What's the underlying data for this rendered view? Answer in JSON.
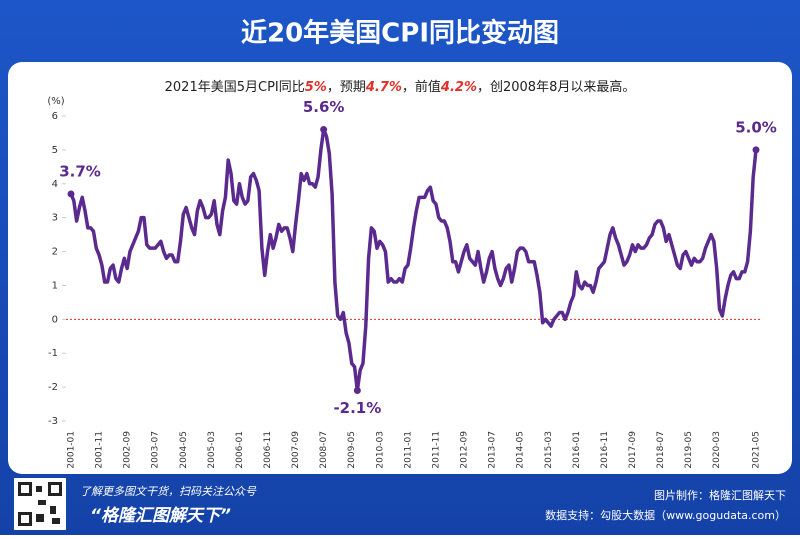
{
  "chart_data": {
    "type": "line",
    "title": "近20年美国CPI同比变动图",
    "subtitle_parts": [
      "2021年美国5月CPI同比",
      "5%",
      "，预期",
      "4.7%",
      "，前值",
      "4.2%",
      "，创2008年8月以来最高。"
    ],
    "y_unit": "(%)",
    "categories": [
      "2001-01",
      null,
      null,
      null,
      null,
      null,
      null,
      null,
      null,
      null,
      "2001-11",
      null,
      null,
      null,
      null,
      null,
      null,
      null,
      null,
      null,
      "2002-09",
      null,
      null,
      null,
      null,
      null,
      null,
      null,
      null,
      null,
      "2003-07",
      null,
      null,
      null,
      null,
      null,
      null,
      null,
      null,
      null,
      "2004-05",
      null,
      null,
      null,
      null,
      null,
      null,
      null,
      null,
      null,
      "2005-03",
      null,
      null,
      null,
      null,
      null,
      null,
      null,
      null,
      null,
      "2006-01",
      null,
      null,
      null,
      null,
      null,
      null,
      null,
      null,
      null,
      "2006-11",
      null,
      null,
      null,
      null,
      null,
      null,
      null,
      null,
      null,
      "2007-09",
      null,
      null,
      null,
      null,
      null,
      null,
      null,
      null,
      null,
      "2008-07",
      null,
      null,
      null,
      null,
      null,
      null,
      null,
      null,
      null,
      "2009-05",
      null,
      null,
      null,
      null,
      null,
      null,
      null,
      null,
      null,
      "2010-03",
      null,
      null,
      null,
      null,
      null,
      null,
      null,
      null,
      null,
      "2011-01",
      null,
      null,
      null,
      null,
      null,
      null,
      null,
      null,
      null,
      "2011-11",
      null,
      null,
      null,
      null,
      null,
      null,
      null,
      null,
      null,
      "2012-09",
      null,
      null,
      null,
      null,
      null,
      null,
      null,
      null,
      null,
      "2013-07",
      null,
      null,
      null,
      null,
      null,
      null,
      null,
      null,
      null,
      "2014-05",
      null,
      null,
      null,
      null,
      null,
      null,
      null,
      null,
      null,
      "2015-03",
      null,
      null,
      null,
      null,
      null,
      null,
      null,
      null,
      null,
      "2016-01",
      null,
      null,
      null,
      null,
      null,
      null,
      null,
      null,
      null,
      "2016-11",
      null,
      null,
      null,
      null,
      null,
      null,
      null,
      null,
      null,
      "2017-09",
      null,
      null,
      null,
      null,
      null,
      null,
      null,
      null,
      null,
      "2018-07",
      null,
      null,
      null,
      null,
      null,
      null,
      null,
      null,
      null,
      "2019-05",
      null,
      null,
      null,
      null,
      null,
      null,
      null,
      null,
      null,
      "2020-03",
      null,
      null,
      null,
      null,
      null,
      null,
      null,
      null,
      null,
      null,
      null,
      null,
      null,
      "2021-05"
    ],
    "values": [
      3.7,
      3.5,
      2.9,
      3.3,
      3.6,
      3.2,
      2.7,
      2.7,
      2.6,
      2.1,
      1.9,
      1.6,
      1.1,
      1.1,
      1.5,
      1.6,
      1.2,
      1.1,
      1.5,
      1.8,
      1.5,
      2.0,
      2.2,
      2.4,
      2.6,
      3.0,
      3.0,
      2.2,
      2.1,
      2.1,
      2.1,
      2.2,
      2.3,
      2.0,
      1.8,
      1.9,
      1.9,
      1.7,
      1.7,
      2.3,
      3.1,
      3.3,
      3.0,
      2.7,
      2.5,
      3.2,
      3.5,
      3.3,
      3.0,
      3.0,
      3.1,
      3.5,
      2.8,
      2.5,
      3.2,
      3.6,
      4.7,
      4.3,
      3.5,
      3.4,
      4.0,
      3.6,
      3.4,
      3.5,
      4.2,
      4.3,
      4.1,
      3.8,
      2.1,
      1.3,
      2.0,
      2.5,
      2.1,
      2.4,
      2.8,
      2.6,
      2.7,
      2.7,
      2.4,
      2.0,
      2.8,
      3.5,
      4.3,
      4.1,
      4.3,
      4.0,
      4.0,
      3.9,
      4.2,
      5.0,
      5.6,
      5.4,
      4.9,
      3.7,
      1.1,
      0.1,
      0.0,
      0.2,
      -0.4,
      -0.7,
      -1.3,
      -1.4,
      -2.1,
      -1.5,
      -1.3,
      -0.2,
      1.8,
      2.7,
      2.6,
      2.1,
      2.3,
      2.2,
      2.0,
      1.1,
      1.2,
      1.1,
      1.1,
      1.2,
      1.1,
      1.5,
      1.6,
      2.1,
      2.7,
      3.2,
      3.6,
      3.6,
      3.6,
      3.8,
      3.9,
      3.5,
      3.4,
      3.0,
      2.9,
      2.9,
      2.7,
      2.3,
      1.7,
      1.7,
      1.4,
      1.7,
      2.0,
      2.2,
      1.8,
      1.7,
      1.6,
      2.0,
      1.5,
      1.1,
      1.4,
      1.8,
      2.0,
      1.5,
      1.2,
      1.0,
      1.2,
      1.5,
      1.6,
      1.1,
      1.5,
      2.0,
      2.1,
      2.1,
      2.0,
      1.7,
      1.7,
      1.7,
      1.3,
      0.8,
      -0.1,
      0.0,
      -0.1,
      -0.2,
      0.0,
      0.1,
      0.2,
      0.2,
      0.0,
      0.2,
      0.5,
      0.7,
      1.4,
      1.0,
      0.9,
      1.1,
      1.0,
      1.0,
      0.8,
      1.1,
      1.5,
      1.6,
      1.7,
      2.1,
      2.5,
      2.7,
      2.4,
      2.2,
      1.9,
      1.6,
      1.7,
      1.9,
      2.2,
      2.0,
      2.2,
      2.1,
      2.1,
      2.2,
      2.4,
      2.5,
      2.8,
      2.9,
      2.9,
      2.7,
      2.3,
      2.5,
      2.2,
      1.9,
      1.6,
      1.5,
      1.9,
      2.0,
      1.8,
      1.6,
      1.8,
      1.7,
      1.7,
      1.8,
      2.1,
      2.3,
      2.5,
      2.3,
      1.5,
      0.3,
      0.1,
      0.6,
      1.0,
      1.3,
      1.4,
      1.2,
      1.2,
      1.4,
      1.4,
      1.7,
      2.6,
      4.2,
      5.0
    ],
    "value_labels": [
      "3.7%",
      null,
      null,
      null,
      null,
      null,
      null,
      null,
      null,
      null,
      null,
      null,
      null,
      null,
      null,
      null,
      null,
      null,
      null,
      null,
      null,
      null,
      null,
      null,
      null,
      null,
      null,
      null,
      null,
      null,
      null,
      null,
      null,
      null,
      null,
      null,
      null,
      null,
      null,
      null,
      null,
      null,
      null,
      null,
      null,
      null,
      null,
      null,
      null,
      null,
      null,
      null,
      null,
      null,
      null,
      null,
      null,
      null,
      null,
      null,
      null,
      null,
      null,
      null,
      null,
      null,
      null,
      null,
      null,
      null,
      null,
      null,
      null,
      null,
      null,
      null,
      null,
      null,
      null,
      null,
      null,
      null,
      null,
      null,
      null,
      null,
      null,
      null,
      null,
      null,
      "5.6%",
      null,
      null,
      null,
      null,
      null,
      null,
      null,
      null,
      null,
      null,
      null,
      "-2.1%",
      null,
      null,
      null,
      null,
      null,
      null,
      null,
      null,
      null,
      null,
      null,
      null,
      null,
      null,
      null,
      null,
      null,
      null,
      null,
      null,
      null,
      null,
      null,
      null,
      null,
      null,
      null,
      null,
      null,
      null,
      null,
      null,
      null,
      null,
      null,
      null,
      null,
      null,
      null,
      null,
      null,
      null,
      null,
      null,
      null,
      null,
      null,
      null,
      null,
      null,
      null,
      null,
      null,
      null,
      null,
      null,
      null,
      null,
      null,
      null,
      null,
      null,
      null,
      null,
      null,
      null,
      null,
      null,
      null,
      null,
      null,
      null,
      null,
      null,
      null,
      null,
      null,
      null,
      null,
      null,
      null,
      null,
      null,
      null,
      null,
      null,
      null,
      null,
      null,
      null,
      null,
      null,
      null,
      null,
      null,
      null,
      null,
      null,
      null,
      null,
      null,
      null,
      null,
      null,
      null,
      null,
      null,
      null,
      null,
      null,
      null,
      null,
      null,
      null,
      null,
      null,
      null,
      null,
      null,
      null,
      null,
      null,
      null,
      null,
      null,
      null,
      null,
      null,
      null,
      null,
      null,
      null,
      null,
      null,
      null,
      null,
      null,
      null,
      null,
      null,
      null,
      "5.0%"
    ],
    "color": "#5a2a8e",
    "ylim": [
      -3,
      6
    ],
    "yticks": [
      -3,
      -2,
      -1,
      0,
      1,
      2,
      3,
      4,
      5,
      6
    ],
    "zero_line_color": "#e0302a",
    "footer": {
      "qr_caption": "了解更多图文干货，扫码关注公众号",
      "brand": "“格隆汇图解天下”",
      "maker": "图片制作：格隆汇图解天下",
      "source": "数据支持：勾股大数据（www.gogudata.com）"
    }
  }
}
